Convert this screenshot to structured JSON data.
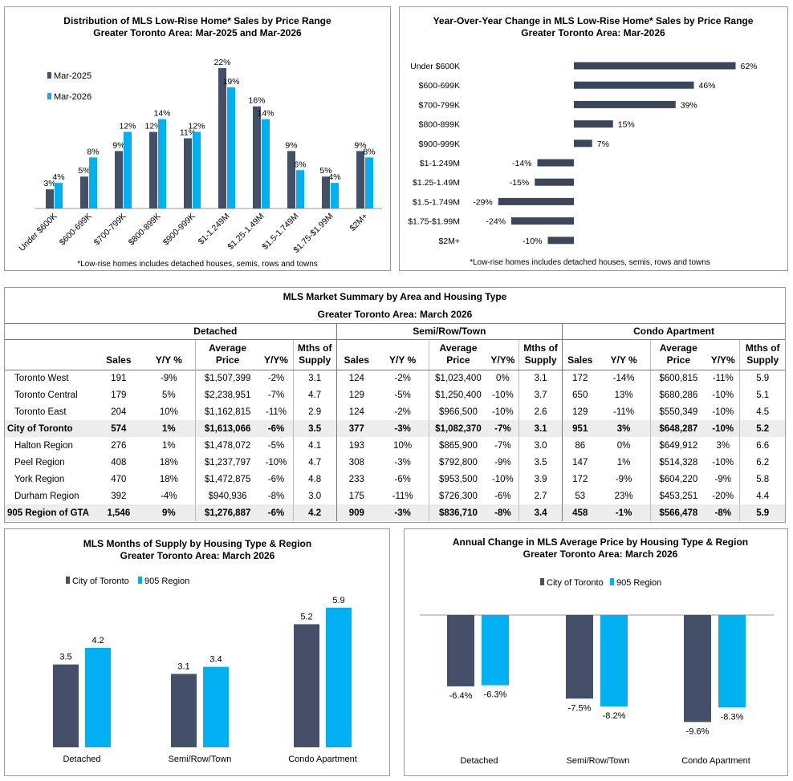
{
  "colors": {
    "city": "#44506a",
    "region": "#00b0f0",
    "bar": "#3c4658"
  },
  "dist_chart": {
    "title": "Distribution of MLS Low-Rise Home* Sales by Price Range",
    "subtitle": "Greater Toronto Area: Mar-2025 and Mar-2026",
    "footnote": "*Low-rise homes includes detached houses, semis, rows and towns"
  },
  "yoy_chart": {
    "title": "Year-Over-Year Change in MLS Low-Rise Home* Sales by Price Range",
    "subtitle": "Greater Toronto Area: Mar-2026",
    "footnote": "*Low-rise homes includes detached houses, semis, rows and towns"
  },
  "supply_chart": {
    "title": "MLS Months of Supply by Housing Type & Region",
    "subtitle": "Greater Toronto Area: March 2026"
  },
  "price_chart": {
    "title": "Annual Change in MLS Average Price by Housing Type & Region",
    "subtitle": "Greater Toronto Area: March 2026"
  },
  "chart_data": [
    {
      "type": "bar",
      "title": "Distribution of MLS Low-Rise Home* Sales by Price Range",
      "subtitle": "Greater Toronto Area: Mar-2025 and Mar-2026",
      "categories": [
        "Under $600K",
        "$600-699K",
        "$700-799K",
        "$800-899K",
        "$900-999K",
        "$1-1.249M",
        "$1.25-1.49M",
        "$1.5-1.749M",
        "$1.75-$1.99M",
        "$2M+"
      ],
      "series": [
        {
          "name": "Mar-2025",
          "values": [
            3,
            5,
            9,
            12,
            11,
            22,
            16,
            9,
            5,
            9
          ],
          "labels": [
            "3%",
            "5%",
            "9%",
            "12%",
            "11%",
            "22%",
            "16%",
            "9%",
            "5%",
            "9%"
          ]
        },
        {
          "name": "Mar-2026",
          "values": [
            4,
            8,
            12,
            14,
            12,
            19,
            14,
            6,
            4,
            8
          ],
          "labels": [
            "4%",
            "8%",
            "12%",
            "14%",
            "12%",
            "19%",
            "14%",
            "6%",
            "4%",
            "8%"
          ]
        }
      ],
      "ylim": [
        0,
        24
      ],
      "grid": false,
      "legend": "left"
    },
    {
      "type": "bar",
      "orientation": "horizontal",
      "title": "Year-Over-Year Change in MLS Low-Rise Home* Sales by Price Range",
      "subtitle": "Greater Toronto Area: Mar-2026",
      "categories": [
        "Under $600K",
        "$600-699K",
        "$700-799K",
        "$800-899K",
        "$900-999K",
        "$1-1.249M",
        "$1.25-1.49M",
        "$1.5-1.749M",
        "$1.75-$1.99M",
        "$2M+"
      ],
      "values": [
        62,
        46,
        39,
        15,
        7,
        -14,
        -15,
        -29,
        -24,
        -10
      ],
      "labels": [
        "62%",
        "46%",
        "39%",
        "15%",
        "7%",
        "-14%",
        "-15%",
        "-29%",
        "-24%",
        "-10%"
      ],
      "xlim": [
        -35,
        68
      ],
      "grid": false
    },
    {
      "type": "bar",
      "title": "MLS Months of Supply by Housing Type & Region",
      "subtitle": "Greater Toronto Area: March 2026",
      "categories": [
        "Detached",
        "Semi/Row/Town",
        "Condo Apartment"
      ],
      "series": [
        {
          "name": "City of Toronto",
          "values": [
            3.5,
            3.1,
            5.2
          ],
          "labels": [
            "3.5",
            "3.1",
            "5.2"
          ]
        },
        {
          "name": "905 Region",
          "values": [
            4.2,
            3.4,
            5.9
          ],
          "labels": [
            "4.2",
            "3.4",
            "5.9"
          ]
        }
      ],
      "ylim": [
        0,
        6.3
      ],
      "grid": false,
      "legend": "top-left"
    },
    {
      "type": "bar",
      "title": "Annual Change in MLS Average Price by Housing Type & Region",
      "subtitle": "Greater Toronto Area: March 2026",
      "categories": [
        "Detached",
        "Semi/Row/Town",
        "Condo Apartment"
      ],
      "series": [
        {
          "name": "City of Toronto",
          "values": [
            -6.4,
            -7.5,
            -9.6
          ],
          "labels": [
            "-6.4%",
            "-7.5%",
            "-9.6%"
          ]
        },
        {
          "name": "905 Region",
          "values": [
            -6.3,
            -8.2,
            -8.3
          ],
          "labels": [
            "-6.3%",
            "-8.2%",
            "-8.3%"
          ]
        }
      ],
      "ylim": [
        -10.2,
        0
      ],
      "grid": false,
      "legend": "top"
    }
  ],
  "summary": {
    "title": "MLS Market Summary by Area and Housing Type",
    "subtitle": "Greater Toronto Area: March 2026",
    "groups": [
      "Detached",
      "Semi/Row/Town",
      "Condo Apartment"
    ],
    "cols": {
      "sales": "Sales",
      "yy": "Y/Y %",
      "avg1": "Average",
      "avg2": "Price",
      "yy2": "Y/Y%",
      "mths1": "Mths of",
      "mths2": "Supply"
    },
    "rows": [
      {
        "area": "Toronto West",
        "total": false,
        "cells": [
          "191",
          "-9%",
          "$1,507,399",
          "-2%",
          "3.1",
          "124",
          "-2%",
          "$1,023,400",
          "0%",
          "3.1",
          "172",
          "-14%",
          "$600,815",
          "-11%",
          "5.9"
        ]
      },
      {
        "area": "Toronto Central",
        "total": false,
        "cells": [
          "179",
          "5%",
          "$2,238,951",
          "-7%",
          "4.7",
          "129",
          "-5%",
          "$1,250,400",
          "-10%",
          "3.7",
          "650",
          "13%",
          "$680,286",
          "-10%",
          "5.1"
        ]
      },
      {
        "area": "Toronto East",
        "total": false,
        "cells": [
          "204",
          "10%",
          "$1,162,815",
          "-11%",
          "2.9",
          "124",
          "-2%",
          "$966,500",
          "-10%",
          "2.6",
          "129",
          "-11%",
          "$550,349",
          "-10%",
          "4.5"
        ]
      },
      {
        "area": "City of Toronto",
        "total": true,
        "cells": [
          "574",
          "1%",
          "$1,613,066",
          "-6%",
          "3.5",
          "377",
          "-3%",
          "$1,082,370",
          "-7%",
          "3.1",
          "951",
          "3%",
          "$648,287",
          "-10%",
          "5.2"
        ]
      },
      {
        "area": "Halton Region",
        "total": false,
        "cells": [
          "276",
          "1%",
          "$1,478,072",
          "-5%",
          "4.1",
          "193",
          "10%",
          "$865,900",
          "-7%",
          "3.0",
          "86",
          "0%",
          "$649,912",
          "3%",
          "6.6"
        ]
      },
      {
        "area": "Peel Region",
        "total": false,
        "cells": [
          "408",
          "18%",
          "$1,237,797",
          "-10%",
          "4.7",
          "308",
          "-3%",
          "$792,800",
          "-9%",
          "3.5",
          "147",
          "1%",
          "$514,328",
          "-10%",
          "6.2"
        ]
      },
      {
        "area": "York Region",
        "total": false,
        "cells": [
          "470",
          "18%",
          "$1,472,875",
          "-6%",
          "4.8",
          "233",
          "-6%",
          "$953,500",
          "-10%",
          "3.9",
          "172",
          "-9%",
          "$604,220",
          "-9%",
          "5.8"
        ]
      },
      {
        "area": "Durham Region",
        "total": false,
        "cells": [
          "392",
          "-4%",
          "$940,936",
          "-8%",
          "3.0",
          "175",
          "-11%",
          "$726,300",
          "-6%",
          "2.7",
          "53",
          "23%",
          "$453,251",
          "-20%",
          "4.4"
        ]
      },
      {
        "area": "905 Region of GTA",
        "total": true,
        "cells": [
          "1,546",
          "9%",
          "$1,276,887",
          "-6%",
          "4.2",
          "909",
          "-3%",
          "$836,710",
          "-8%",
          "3.4",
          "458",
          "-1%",
          "$566,478",
          "-8%",
          "5.9"
        ]
      }
    ]
  }
}
